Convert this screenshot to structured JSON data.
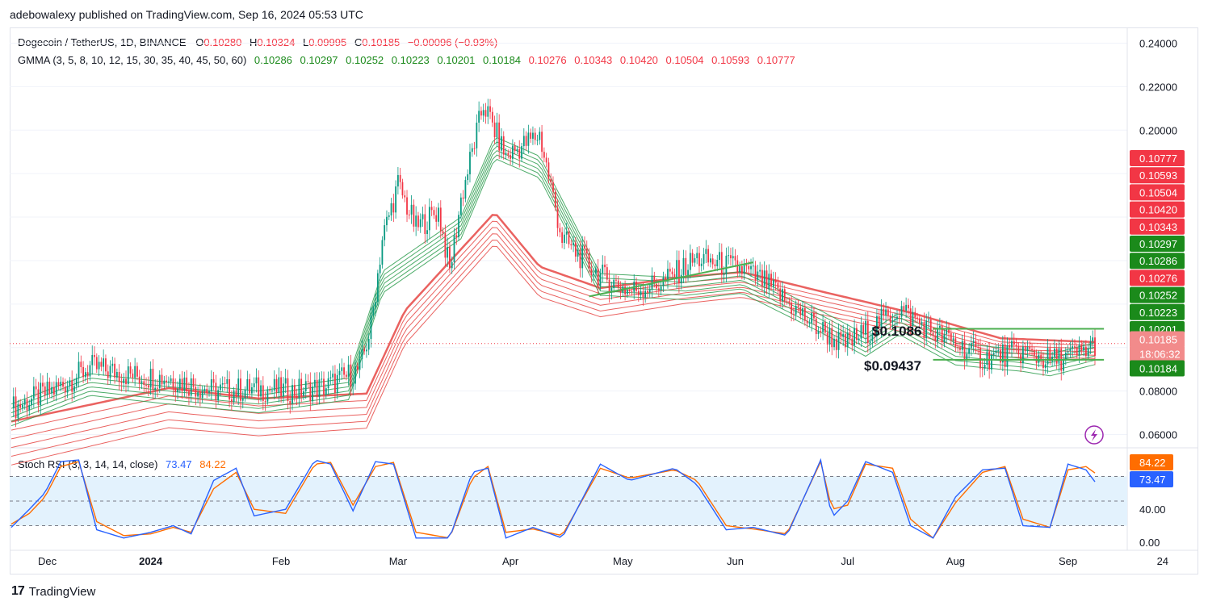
{
  "header": {
    "publisher": "adebowalexy published on TradingView.com, Sep 16, 2024 05:53 UTC"
  },
  "legend": {
    "symbol": "Dogecoin / TetherUS, 1D, BINANCE",
    "o_label": "O",
    "o": "0.10280",
    "h_label": "H",
    "h": "0.10324",
    "l_label": "L",
    "l": "0.09995",
    "c_label": "C",
    "c": "0.10185",
    "change": "−0.00096 (−0.93%)",
    "gmma_label": "GMMA (3, 5, 8, 10, 12, 15, 30, 35, 40, 45, 50, 60)",
    "gmma_short": [
      "0.10286",
      "0.10297",
      "0.10252",
      "0.10223",
      "0.10201",
      "0.10184"
    ],
    "gmma_long": [
      "0.10276",
      "0.10343",
      "0.10420",
      "0.10504",
      "0.10593",
      "0.10777"
    ],
    "rsi_label": "Stoch RSI (3, 3, 14, 14, close)",
    "rsi_k": "73.47",
    "rsi_d": "84.22"
  },
  "colors": {
    "up": "#089981",
    "down": "#f23645",
    "short_ma": "#2e9e4f",
    "long_ma": "#e8514f",
    "trendline": "#4caf50",
    "rsi_k": "#2962ff",
    "rsi_d": "#ff6d00",
    "rsi_band": "#e3f2fd"
  },
  "annotations": {
    "resistance": "$0.1086",
    "support": "$0.09437"
  },
  "axis_badges": [
    {
      "text": "0.10777",
      "color": "#f23645"
    },
    {
      "text": "0.10593",
      "color": "#f23645"
    },
    {
      "text": "0.10504",
      "color": "#f23645"
    },
    {
      "text": "0.10420",
      "color": "#f23645"
    },
    {
      "text": "0.10343",
      "color": "#f23645"
    },
    {
      "text": "0.10297",
      "color": "#1b8a1b"
    },
    {
      "text": "0.10286",
      "color": "#1b8a1b"
    },
    {
      "text": "0.10276",
      "color": "#f23645"
    },
    {
      "text": "0.10252",
      "color": "#1b8a1b"
    },
    {
      "text": "0.10223",
      "color": "#1b8a1b"
    },
    {
      "text": "0.10201",
      "color": "#1b8a1b"
    },
    {
      "text": "0.10185",
      "color": "#f28b8b"
    },
    {
      "text": "18:06:32",
      "color": "#f28b8b"
    },
    {
      "text": "0.10184",
      "color": "#1b8a1b"
    }
  ],
  "rsi_badges": [
    {
      "text": "84.22",
      "color": "#ff6d00"
    },
    {
      "text": "73.47",
      "color": "#2962ff"
    }
  ],
  "chart_data": {
    "type": "candlestick",
    "price_ticks": [
      "0.24000",
      "0.22000",
      "0.20000",
      "0.08000",
      "0.06000"
    ],
    "price_ylim": [
      0.055,
      0.245
    ],
    "rsi_ticks": [
      "40.00",
      "0.00"
    ],
    "rsi_ylim": [
      -5,
      105
    ],
    "time_labels": [
      "Dec",
      "2024",
      "Feb",
      "Mar",
      "Apr",
      "May",
      "Jun",
      "Jul",
      "Aug",
      "Sep",
      "24"
    ],
    "close_series": [
      [
        0,
        0.072
      ],
      [
        20,
        0.081
      ],
      [
        35,
        0.091
      ],
      [
        55,
        0.087
      ],
      [
        70,
        0.086
      ],
      [
        90,
        0.08
      ],
      [
        110,
        0.081
      ],
      [
        125,
        0.08
      ],
      [
        140,
        0.082
      ],
      [
        155,
        0.09
      ],
      [
        160,
        0.11
      ],
      [
        165,
        0.15
      ],
      [
        172,
        0.175
      ],
      [
        180,
        0.155
      ],
      [
        190,
        0.163
      ],
      [
        195,
        0.135
      ],
      [
        200,
        0.168
      ],
      [
        210,
        0.212
      ],
      [
        220,
        0.188
      ],
      [
        235,
        0.198
      ],
      [
        245,
        0.15
      ],
      [
        262,
        0.133
      ],
      [
        275,
        0.126
      ],
      [
        290,
        0.13
      ],
      [
        305,
        0.141
      ],
      [
        325,
        0.136
      ],
      [
        335,
        0.13
      ],
      [
        355,
        0.112
      ],
      [
        370,
        0.101
      ],
      [
        380,
        0.107
      ],
      [
        395,
        0.118
      ],
      [
        410,
        0.107
      ],
      [
        420,
        0.102
      ],
      [
        432,
        0.095
      ],
      [
        450,
        0.098
      ],
      [
        462,
        0.094
      ],
      [
        475,
        0.097
      ],
      [
        482,
        0.1018
      ]
    ],
    "short_ma_series": [
      [
        0,
        0.074
      ],
      [
        35,
        0.088
      ],
      [
        70,
        0.084
      ],
      [
        110,
        0.08
      ],
      [
        150,
        0.086
      ],
      [
        165,
        0.135
      ],
      [
        200,
        0.16
      ],
      [
        215,
        0.197
      ],
      [
        235,
        0.188
      ],
      [
        262,
        0.134
      ],
      [
        300,
        0.132
      ],
      [
        325,
        0.135
      ],
      [
        360,
        0.117
      ],
      [
        380,
        0.106
      ],
      [
        395,
        0.116
      ],
      [
        420,
        0.102
      ],
      [
        450,
        0.099
      ],
      [
        462,
        0.097
      ],
      [
        482,
        0.1022
      ]
    ],
    "long_ma_series": [
      [
        0,
        0.07
      ],
      [
        70,
        0.085
      ],
      [
        110,
        0.08
      ],
      [
        158,
        0.082
      ],
      [
        175,
        0.12
      ],
      [
        215,
        0.165
      ],
      [
        235,
        0.14
      ],
      [
        262,
        0.13
      ],
      [
        300,
        0.135
      ],
      [
        325,
        0.137
      ],
      [
        360,
        0.128
      ],
      [
        400,
        0.118
      ],
      [
        440,
        0.106
      ],
      [
        482,
        0.104
      ]
    ],
    "trendlines": [
      {
        "x": [
          257,
          330
        ],
        "y": [
          0.1235,
          0.1392
        ]
      },
      {
        "x": [
          410,
          486
        ],
        "y": [
          0.1086,
          0.1086
        ]
      },
      {
        "x": [
          410,
          486
        ],
        "y": [
          0.09437,
          0.09437
        ]
      }
    ],
    "stoch_k": [
      [
        0,
        18
      ],
      [
        8,
        40
      ],
      [
        15,
        60
      ],
      [
        22,
        98
      ],
      [
        30,
        100
      ],
      [
        38,
        15
      ],
      [
        50,
        5
      ],
      [
        62,
        12
      ],
      [
        72,
        20
      ],
      [
        80,
        10
      ],
      [
        90,
        75
      ],
      [
        100,
        90
      ],
      [
        108,
        32
      ],
      [
        122,
        40
      ],
      [
        135,
        100
      ],
      [
        142,
        95
      ],
      [
        152,
        38
      ],
      [
        162,
        98
      ],
      [
        170,
        95
      ],
      [
        180,
        5
      ],
      [
        195,
        5
      ],
      [
        205,
        85
      ],
      [
        212,
        90
      ],
      [
        220,
        5
      ],
      [
        232,
        18
      ],
      [
        245,
        5
      ],
      [
        262,
        95
      ],
      [
        275,
        75
      ],
      [
        295,
        90
      ],
      [
        305,
        70
      ],
      [
        318,
        15
      ],
      [
        330,
        18
      ],
      [
        345,
        8
      ],
      [
        360,
        100
      ],
      [
        365,
        30
      ],
      [
        372,
        50
      ],
      [
        380,
        98
      ],
      [
        392,
        85
      ],
      [
        400,
        20
      ],
      [
        410,
        5
      ],
      [
        420,
        55
      ],
      [
        432,
        88
      ],
      [
        442,
        90
      ],
      [
        450,
        20
      ],
      [
        462,
        18
      ],
      [
        470,
        95
      ],
      [
        478,
        88
      ],
      [
        482,
        73.47
      ]
    ],
    "stoch_d": [
      [
        0,
        22
      ],
      [
        8,
        35
      ],
      [
        15,
        55
      ],
      [
        22,
        92
      ],
      [
        30,
        98
      ],
      [
        38,
        25
      ],
      [
        50,
        8
      ],
      [
        62,
        10
      ],
      [
        72,
        18
      ],
      [
        80,
        12
      ],
      [
        90,
        65
      ],
      [
        100,
        85
      ],
      [
        108,
        40
      ],
      [
        122,
        35
      ],
      [
        135,
        95
      ],
      [
        142,
        97
      ],
      [
        152,
        45
      ],
      [
        162,
        92
      ],
      [
        170,
        97
      ],
      [
        180,
        12
      ],
      [
        195,
        5
      ],
      [
        205,
        78
      ],
      [
        212,
        92
      ],
      [
        220,
        12
      ],
      [
        232,
        16
      ],
      [
        245,
        8
      ],
      [
        262,
        90
      ],
      [
        275,
        78
      ],
      [
        295,
        88
      ],
      [
        305,
        75
      ],
      [
        318,
        20
      ],
      [
        330,
        16
      ],
      [
        345,
        10
      ],
      [
        360,
        98
      ],
      [
        365,
        40
      ],
      [
        372,
        45
      ],
      [
        380,
        95
      ],
      [
        392,
        90
      ],
      [
        400,
        28
      ],
      [
        410,
        5
      ],
      [
        420,
        48
      ],
      [
        432,
        85
      ],
      [
        442,
        92
      ],
      [
        450,
        28
      ],
      [
        462,
        18
      ],
      [
        470,
        88
      ],
      [
        478,
        92
      ],
      [
        482,
        84.22
      ]
    ]
  }
}
